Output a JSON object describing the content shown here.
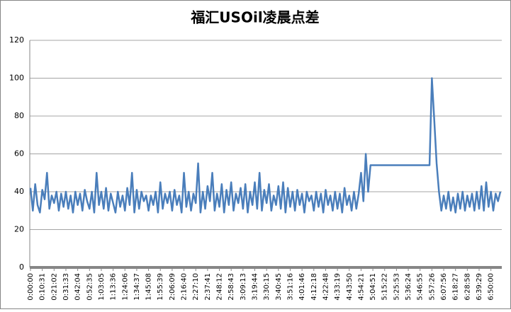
{
  "chart_data": {
    "type": "line",
    "title": "福汇USOil凌晨点差",
    "color": "#4a7ebb",
    "grid": true,
    "ylim": [
      0,
      120
    ],
    "yticks": [
      0,
      20,
      40,
      60,
      80,
      100,
      120
    ],
    "categories": [
      "0:00:00",
      null,
      null,
      null,
      null,
      "0:10:31",
      null,
      null,
      null,
      null,
      "0:21:02",
      null,
      null,
      null,
      null,
      "0:31:33",
      null,
      null,
      null,
      null,
      "0:42:04",
      null,
      null,
      null,
      null,
      "0:52:35",
      null,
      null,
      null,
      null,
      "1:03:05",
      null,
      null,
      null,
      null,
      "1:13:36",
      null,
      null,
      null,
      null,
      "1:24:06",
      null,
      null,
      null,
      null,
      "1:34:37",
      null,
      null,
      null,
      null,
      "1:45:08",
      null,
      null,
      null,
      null,
      "1:55:39",
      null,
      null,
      null,
      null,
      "2:06:09",
      null,
      null,
      null,
      null,
      "2:16:40",
      null,
      null,
      null,
      null,
      "2:27:10",
      null,
      null,
      null,
      null,
      "2:37:41",
      null,
      null,
      null,
      null,
      "2:48:12",
      null,
      null,
      null,
      null,
      "2:58:43",
      null,
      null,
      null,
      null,
      "3:09:13",
      null,
      null,
      null,
      null,
      "3:19:44",
      null,
      null,
      null,
      null,
      "3:30:15",
      null,
      null,
      null,
      null,
      "3:40:45",
      null,
      null,
      null,
      null,
      "3:51:16",
      null,
      null,
      null,
      null,
      "4:01:46",
      null,
      null,
      null,
      null,
      "4:12:18",
      null,
      null,
      null,
      null,
      "4:22:48",
      null,
      null,
      null,
      null,
      "4:33:19",
      null,
      null,
      null,
      null,
      "4:43:50",
      null,
      null,
      null,
      null,
      "4:54:21",
      null,
      null,
      null,
      null,
      "5:04:51",
      null,
      null,
      null,
      null,
      "5:15:22",
      null,
      null,
      null,
      null,
      "5:25:53",
      null,
      null,
      null,
      null,
      "5:36:24",
      null,
      null,
      null,
      null,
      "5:46:55",
      null,
      null,
      null,
      null,
      "5:57:26",
      null,
      null,
      null,
      null,
      "6:07:56",
      null,
      null,
      null,
      null,
      "6:18:27",
      null,
      null,
      null,
      null,
      "6:28:58",
      null,
      null,
      null,
      null,
      "6:39:29",
      null,
      null,
      null,
      null,
      "6:50:00",
      null,
      null,
      null,
      null
    ],
    "values": [
      42,
      30,
      44,
      33,
      29,
      41,
      36,
      50,
      31,
      38,
      34,
      40,
      30,
      39,
      32,
      40,
      31,
      38,
      29,
      40,
      33,
      39,
      30,
      41,
      35,
      31,
      40,
      29,
      50,
      33,
      40,
      31,
      42,
      30,
      39,
      34,
      29,
      40,
      32,
      38,
      30,
      42,
      33,
      50,
      29,
      41,
      31,
      40,
      35,
      38,
      30,
      38,
      33,
      40,
      29,
      45,
      31,
      39,
      34,
      40,
      30,
      41,
      33,
      38,
      29,
      50,
      32,
      40,
      30,
      39,
      34,
      55,
      29,
      40,
      31,
      43,
      35,
      50,
      30,
      39,
      32,
      44,
      29,
      41,
      33,
      45,
      30,
      39,
      34,
      42,
      31,
      44,
      29,
      40,
      33,
      45,
      31,
      50,
      30,
      41,
      34,
      44,
      30,
      38,
      33,
      43,
      31,
      45,
      29,
      42,
      32,
      40,
      30,
      41,
      33,
      39,
      29,
      40,
      35,
      38,
      30,
      40,
      32,
      39,
      29,
      41,
      33,
      38,
      30,
      40,
      31,
      39,
      29,
      42,
      33,
      38,
      30,
      40,
      31,
      39,
      50,
      35,
      60,
      40,
      54,
      54,
      54,
      54,
      54,
      54,
      54,
      54,
      54,
      54,
      54,
      54,
      54,
      54,
      54,
      54,
      54,
      54,
      54,
      54,
      54,
      54,
      54,
      54,
      54,
      54,
      100,
      78,
      55,
      40,
      30,
      38,
      31,
      40,
      30,
      37,
      29,
      39,
      31,
      40,
      30,
      38,
      32,
      39,
      30,
      40,
      31,
      43,
      30,
      45,
      32,
      40,
      30,
      39,
      35,
      40
    ]
  }
}
